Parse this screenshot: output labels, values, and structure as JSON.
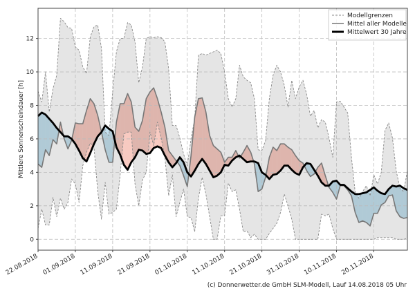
{
  "chart_data": {
    "type": "area",
    "title": "",
    "xlabel": "",
    "ylabel": "Mittlere Sonnenscheindauer [h]",
    "ylim": [
      -0.65,
      13.8
    ],
    "yticks": [
      0,
      2,
      4,
      6,
      8,
      10,
      12
    ],
    "xticks": [
      "22.08.2018",
      "01.09.2018",
      "11.09.2018",
      "21.09.2018",
      "01.10.2018",
      "11.10.2018",
      "21.10.2018",
      "31.10.2018",
      "10.11.2018",
      "20.11.2018"
    ],
    "xlim": [
      "22.08.2018",
      "29.11.2018"
    ],
    "grid": true,
    "legend_position": "top-right",
    "x": [
      "22.08.2018",
      "23.08.2018",
      "24.08.2018",
      "25.08.2018",
      "26.08.2018",
      "27.08.2018",
      "28.08.2018",
      "29.08.2018",
      "30.08.2018",
      "31.08.2018",
      "01.09.2018",
      "02.09.2018",
      "03.09.2018",
      "04.09.2018",
      "05.09.2018",
      "06.09.2018",
      "07.09.2018",
      "08.09.2018",
      "09.09.2018",
      "10.09.2018",
      "11.09.2018",
      "12.09.2018",
      "13.09.2018",
      "14.09.2018",
      "15.09.2018",
      "16.09.2018",
      "17.09.2018",
      "18.09.2018",
      "19.09.2018",
      "20.09.2018",
      "21.09.2018",
      "22.09.2018",
      "23.09.2018",
      "24.09.2018",
      "25.09.2018",
      "26.09.2018",
      "27.09.2018",
      "28.09.2018",
      "29.09.2018",
      "30.09.2018",
      "01.10.2018",
      "02.10.2018",
      "03.10.2018",
      "04.10.2018",
      "05.10.2018",
      "06.10.2018",
      "07.10.2018",
      "08.10.2018",
      "09.10.2018",
      "10.10.2018",
      "11.10.2018",
      "12.10.2018",
      "13.10.2018",
      "14.10.2018",
      "15.10.2018",
      "16.10.2018",
      "17.10.2018",
      "18.10.2018",
      "19.10.2018",
      "20.10.2018",
      "21.10.2018",
      "22.10.2018",
      "23.10.2018",
      "24.10.2018",
      "25.10.2018",
      "26.10.2018",
      "27.10.2018",
      "28.10.2018",
      "29.10.2018",
      "30.10.2018",
      "31.10.2018",
      "01.11.2018",
      "02.11.2018",
      "03.11.2018",
      "04.11.2018",
      "05.11.2018",
      "06.11.2018",
      "07.11.2018",
      "08.11.2018",
      "09.11.2018",
      "10.11.2018",
      "11.11.2018",
      "12.11.2018",
      "13.11.2018",
      "14.11.2018",
      "15.11.2018",
      "16.11.2018",
      "17.11.2018",
      "18.11.2018",
      "19.11.2018",
      "20.11.2018",
      "21.11.2018",
      "22.11.2018",
      "23.11.2018",
      "24.11.2018",
      "25.11.2018",
      "26.11.2018",
      "27.11.2018",
      "28.11.2018",
      "29.11.2018"
    ],
    "series": [
      {
        "name": "Modellgrenzen",
        "role": "upper",
        "color": "#888888",
        "values": [
          8.85,
          8.2,
          10.0,
          7.6,
          9.0,
          9.8,
          13.2,
          13.0,
          12.65,
          12.6,
          11.5,
          11.3,
          10.3,
          9.9,
          12.1,
          12.7,
          12.8,
          11.4,
          6.4,
          6.2,
          8.8,
          11.2,
          12.0,
          12.0,
          12.95,
          12.8,
          11.8,
          9.35,
          10.3,
          12.0,
          12.1,
          12.05,
          12.1,
          12.05,
          11.8,
          10.2,
          6.8,
          6.8,
          6.05,
          5.1,
          4.4,
          6.0,
          7.2,
          11.0,
          11.1,
          11.0,
          11.1,
          11.2,
          11.3,
          11.1,
          10.0,
          8.4,
          7.9,
          8.4,
          10.4,
          9.7,
          9.5,
          9.35,
          8.4,
          5.35,
          5.3,
          5.9,
          8.4,
          9.8,
          10.4,
          10.0,
          9.2,
          7.9,
          9.5,
          8.4,
          9.1,
          9.5,
          8.65,
          7.35,
          7.7,
          6.65,
          7.15,
          7.0,
          6.05,
          4.9,
          8.2,
          8.25,
          7.9,
          7.55,
          4.9,
          2.8,
          2.45,
          2.85,
          3.2,
          2.6,
          3.85,
          3.3,
          4.0,
          6.5,
          6.95,
          6.05,
          4.1,
          3.05,
          2.85,
          4.1
        ]
      },
      {
        "name": "Modellgrenzen",
        "role": "lower",
        "color": "#888888",
        "values": [
          0.65,
          1.8,
          0.85,
          0.85,
          2.5,
          1.35,
          2.45,
          1.8,
          2.2,
          3.6,
          3.3,
          2.2,
          4.4,
          5.2,
          5.75,
          5.5,
          2.85,
          1.2,
          3.4,
          1.5,
          1.6,
          1.8,
          3.85,
          6.3,
          6.4,
          6.4,
          3.3,
          2.0,
          3.55,
          4.0,
          6.4,
          5.6,
          7.0,
          6.05,
          4.9,
          2.6,
          3.85,
          1.35,
          2.2,
          3.0,
          1.35,
          1.3,
          0.45,
          2.45,
          3.7,
          2.7,
          1.35,
          0,
          0,
          1.4,
          1.4,
          3.35,
          2.85,
          2.95,
          1.8,
          0.45,
          0.5,
          0.1,
          0.3,
          0,
          0,
          0,
          0.35,
          0.65,
          0.95,
          1.6,
          2.7,
          2.0,
          1.2,
          0,
          0,
          0,
          0,
          0,
          0,
          0,
          1.5,
          1.4,
          1.5,
          0.65,
          0,
          0,
          0,
          0,
          0,
          0,
          0,
          0,
          0,
          0,
          0,
          0.1,
          0.1,
          0.1,
          0.1,
          0.1,
          0,
          0,
          0,
          0.05
        ]
      },
      {
        "name": "Mittel aller Modelle",
        "role": "model_mean",
        "color": "#777777",
        "values": [
          4.5,
          4.3,
          5.35,
          5.0,
          5.95,
          5.7,
          7.0,
          6.0,
          5.4,
          5.9,
          6.95,
          6.9,
          6.9,
          7.7,
          8.4,
          8.1,
          7.4,
          6.4,
          5.35,
          4.6,
          4.6,
          7.0,
          8.1,
          8.1,
          8.7,
          8.2,
          6.7,
          6.45,
          7.1,
          8.4,
          8.8,
          9.05,
          8.4,
          7.6,
          6.7,
          5.3,
          5.0,
          4.7,
          4.4,
          3.8,
          3.15,
          5.0,
          7.3,
          8.4,
          8.45,
          7.6,
          6.2,
          5.6,
          5.4,
          5.2,
          4.6,
          4.9,
          4.9,
          5.3,
          4.85,
          5.2,
          5.6,
          5.2,
          4.5,
          2.85,
          3.0,
          3.7,
          4.9,
          5.5,
          5.3,
          5.7,
          5.7,
          5.5,
          5.35,
          5.0,
          4.7,
          4.55,
          4.1,
          3.75,
          3.9,
          4.3,
          4.55,
          3.8,
          3.1,
          2.8,
          2.4,
          3.2,
          3.2,
          2.95,
          2.6,
          1.6,
          1.0,
          1.1,
          1.0,
          0.8,
          1.55,
          1.55,
          2.05,
          2.2,
          2.6,
          2.65,
          1.7,
          1.35,
          1.25,
          1.3
        ]
      },
      {
        "name": "Mittelwert 30 Jahre",
        "role": "climate_mean",
        "color": "#000000",
        "values": [
          7.36,
          7.57,
          7.45,
          7.2,
          6.95,
          6.65,
          6.4,
          6.15,
          6.15,
          6.0,
          5.7,
          5.3,
          4.85,
          4.65,
          5.15,
          5.7,
          6.15,
          6.4,
          6.8,
          6.6,
          6.45,
          5.5,
          5.05,
          4.45,
          4.15,
          4.6,
          4.9,
          5.35,
          5.3,
          5.1,
          5.15,
          5.45,
          5.55,
          5.45,
          5.0,
          4.6,
          4.3,
          4.55,
          4.9,
          4.6,
          4.0,
          3.75,
          4.1,
          4.5,
          4.8,
          4.5,
          4.1,
          3.7,
          3.8,
          4.0,
          4.45,
          4.4,
          4.7,
          4.9,
          5.0,
          4.8,
          4.6,
          4.65,
          4.65,
          4.55,
          4.0,
          3.85,
          3.6,
          3.85,
          3.9,
          4.1,
          4.4,
          4.4,
          4.15,
          3.95,
          3.85,
          4.3,
          4.55,
          4.5,
          4.15,
          3.8,
          3.4,
          3.2,
          3.2,
          3.45,
          3.5,
          3.25,
          3.25,
          3.05,
          2.85,
          2.7,
          2.7,
          2.75,
          2.8,
          2.95,
          3.1,
          2.9,
          2.75,
          2.7,
          3.0,
          3.2,
          3.15,
          3.2,
          3.05,
          2.95
        ]
      }
    ],
    "fill_colors": {
      "above": "#f08a75",
      "below": "#6fb5d8",
      "envelope": "#e6e6e6"
    },
    "legend": [
      "Modellgrenzen",
      "Mittel aller Modelle",
      "Mittelwert 30 Jahre"
    ]
  },
  "footer": "(c) Donnerwetter.de GmbH SLM-Modell, Lauf 14.08.2018 05 Uhr"
}
